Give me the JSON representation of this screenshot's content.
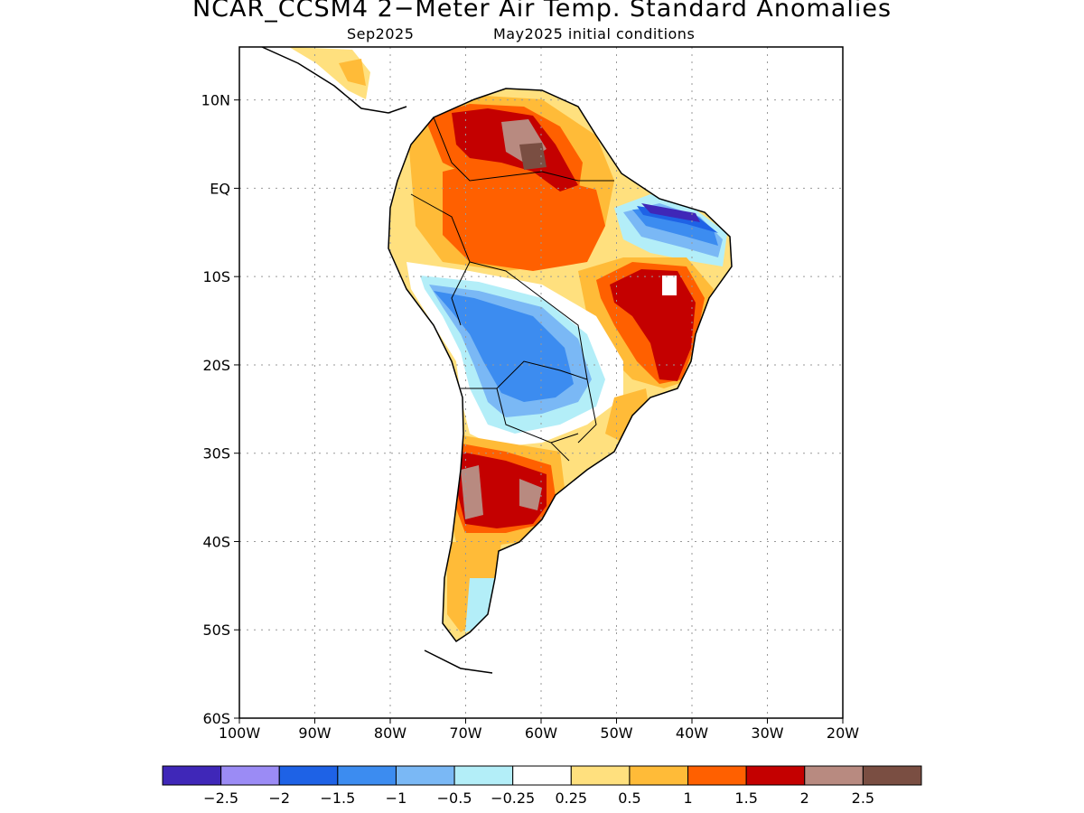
{
  "title": "NCAR_CCSM4 2−Meter Air Temp. Standard Anomalies",
  "subtitle_left": "Sep2025",
  "subtitle_right": "May2025 initial conditions",
  "axes": {
    "lat_labels": [
      "10N",
      "EQ",
      "10S",
      "20S",
      "30S",
      "40S",
      "50S",
      "60S"
    ],
    "lon_labels": [
      "100W",
      "90W",
      "80W",
      "70W",
      "60W",
      "50W",
      "40W",
      "30W",
      "20W"
    ],
    "lon_range": [
      -100,
      -20
    ],
    "lat_range": [
      -60,
      16
    ],
    "grid": true
  },
  "legend": {
    "colors": [
      "#3f27b8",
      "#9b8bf5",
      "#1e62e6",
      "#3c8cf0",
      "#7ab8f5",
      "#b3eef8",
      "#ffffff",
      "#ffe07e",
      "#ffbb38",
      "#ff6000",
      "#c40000",
      "#b88a80",
      "#7a4e42"
    ],
    "labels": [
      "−2.5",
      "−2",
      "−1.5",
      "−1",
      "−0.5",
      "−0.25",
      "0.25",
      "0.5",
      "1",
      "1.5",
      "2",
      "2.5"
    ]
  }
}
